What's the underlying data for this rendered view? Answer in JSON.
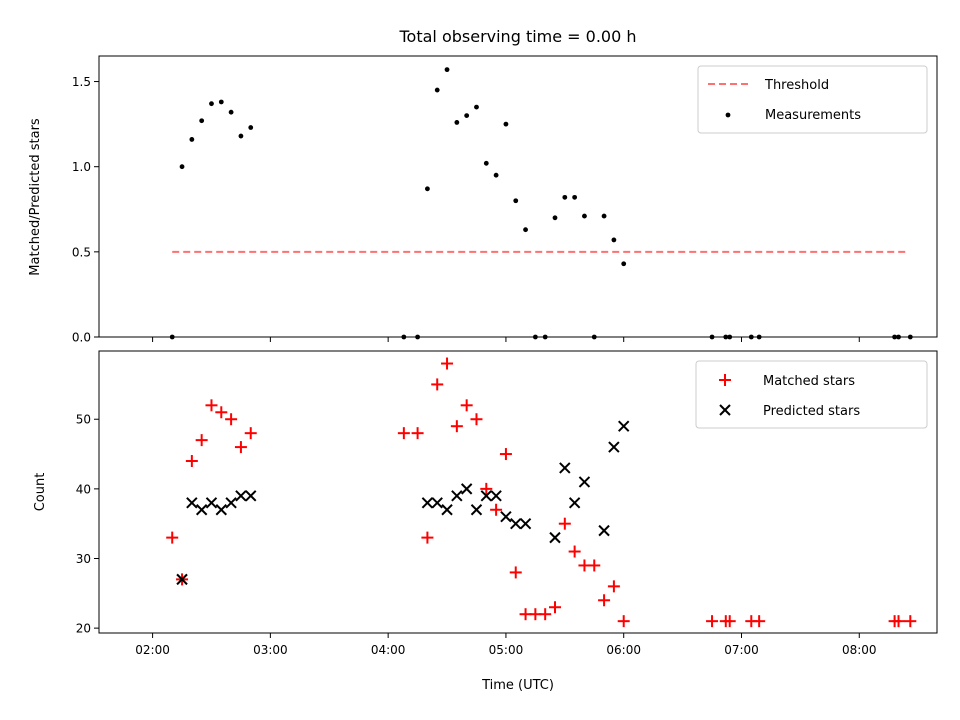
{
  "chart_data": [
    {
      "type": "scatter",
      "title": "Total observing time = 0.00 h",
      "xlabel": "",
      "ylabel": "Matched/Predicted stars",
      "ylim": [
        0,
        1.65
      ],
      "yticks": [
        "0.0",
        "0.5",
        "1.0",
        "1.5"
      ],
      "legend_position": "top-right",
      "threshold": {
        "name": "Threshold",
        "y": 0.5,
        "x_start": "02:10",
        "x_end": "08:25",
        "color": "#ff7070",
        "style": "dashed"
      },
      "series": [
        {
          "name": "Measurements",
          "color": "#000000",
          "marker": "dot",
          "points": [
            {
              "x": "02:10",
              "y": 0.0
            },
            {
              "x": "02:15",
              "y": 1.0
            },
            {
              "x": "02:20",
              "y": 1.16
            },
            {
              "x": "02:25",
              "y": 1.27
            },
            {
              "x": "02:30",
              "y": 1.37
            },
            {
              "x": "02:35",
              "y": 1.38
            },
            {
              "x": "02:40",
              "y": 1.32
            },
            {
              "x": "02:45",
              "y": 1.18
            },
            {
              "x": "02:50",
              "y": 1.23
            },
            {
              "x": "04:08",
              "y": 0.0
            },
            {
              "x": "04:15",
              "y": 0.0
            },
            {
              "x": "04:20",
              "y": 0.87
            },
            {
              "x": "04:25",
              "y": 1.45
            },
            {
              "x": "04:30",
              "y": 1.57
            },
            {
              "x": "04:35",
              "y": 1.26
            },
            {
              "x": "04:40",
              "y": 1.3
            },
            {
              "x": "04:45",
              "y": 1.35
            },
            {
              "x": "04:50",
              "y": 1.02
            },
            {
              "x": "04:55",
              "y": 0.95
            },
            {
              "x": "05:00",
              "y": 1.25
            },
            {
              "x": "05:05",
              "y": 0.8
            },
            {
              "x": "05:10",
              "y": 0.63
            },
            {
              "x": "05:15",
              "y": 0.0
            },
            {
              "x": "05:20",
              "y": 0.0
            },
            {
              "x": "05:25",
              "y": 0.7
            },
            {
              "x": "05:30",
              "y": 0.82
            },
            {
              "x": "05:35",
              "y": 0.82
            },
            {
              "x": "05:40",
              "y": 0.71
            },
            {
              "x": "05:45",
              "y": 0.0
            },
            {
              "x": "05:50",
              "y": 0.71
            },
            {
              "x": "05:55",
              "y": 0.57
            },
            {
              "x": "06:00",
              "y": 0.43
            },
            {
              "x": "06:45",
              "y": 0.0
            },
            {
              "x": "06:52",
              "y": 0.0
            },
            {
              "x": "06:54",
              "y": 0.0
            },
            {
              "x": "07:05",
              "y": 0.0
            },
            {
              "x": "07:09",
              "y": 0.0
            },
            {
              "x": "08:18",
              "y": 0.0
            },
            {
              "x": "08:20",
              "y": 0.0
            },
            {
              "x": "08:26",
              "y": 0.0
            }
          ]
        }
      ]
    },
    {
      "type": "scatter",
      "title": "",
      "xlabel": "Time (UTC)",
      "ylabel": "Count",
      "ylim": [
        19.3,
        59.8
      ],
      "yticks": [
        "20",
        "30",
        "40",
        "50"
      ],
      "xticks": [
        "02:00",
        "03:00",
        "04:00",
        "05:00",
        "06:00",
        "07:00",
        "08:00"
      ],
      "legend_position": "top-right",
      "series": [
        {
          "name": "Matched stars",
          "color": "#ff0000",
          "marker": "plus",
          "points": [
            {
              "x": "02:10",
              "y": 33
            },
            {
              "x": "02:15",
              "y": 27
            },
            {
              "x": "02:20",
              "y": 44
            },
            {
              "x": "02:25",
              "y": 47
            },
            {
              "x": "02:30",
              "y": 52
            },
            {
              "x": "02:35",
              "y": 51
            },
            {
              "x": "02:40",
              "y": 50
            },
            {
              "x": "02:45",
              "y": 46
            },
            {
              "x": "02:50",
              "y": 48
            },
            {
              "x": "04:08",
              "y": 48
            },
            {
              "x": "04:15",
              "y": 48
            },
            {
              "x": "04:20",
              "y": 33
            },
            {
              "x": "04:25",
              "y": 55
            },
            {
              "x": "04:30",
              "y": 58
            },
            {
              "x": "04:35",
              "y": 49
            },
            {
              "x": "04:40",
              "y": 52
            },
            {
              "x": "04:45",
              "y": 50
            },
            {
              "x": "04:50",
              "y": 40
            },
            {
              "x": "04:55",
              "y": 37
            },
            {
              "x": "05:00",
              "y": 45
            },
            {
              "x": "05:05",
              "y": 28
            },
            {
              "x": "05:10",
              "y": 22
            },
            {
              "x": "05:15",
              "y": 22
            },
            {
              "x": "05:20",
              "y": 22
            },
            {
              "x": "05:25",
              "y": 23
            },
            {
              "x": "05:30",
              "y": 35
            },
            {
              "x": "05:35",
              "y": 31
            },
            {
              "x": "05:40",
              "y": 29
            },
            {
              "x": "05:45",
              "y": 29
            },
            {
              "x": "05:50",
              "y": 24
            },
            {
              "x": "05:55",
              "y": 26
            },
            {
              "x": "06:00",
              "y": 21
            },
            {
              "x": "06:45",
              "y": 21
            },
            {
              "x": "06:52",
              "y": 21
            },
            {
              "x": "06:54",
              "y": 21
            },
            {
              "x": "07:05",
              "y": 21
            },
            {
              "x": "07:09",
              "y": 21
            },
            {
              "x": "08:18",
              "y": 21
            },
            {
              "x": "08:20",
              "y": 21
            },
            {
              "x": "08:26",
              "y": 21
            }
          ]
        },
        {
          "name": "Predicted stars",
          "color": "#000000",
          "marker": "x",
          "points": [
            {
              "x": "02:15",
              "y": 27
            },
            {
              "x": "02:20",
              "y": 38
            },
            {
              "x": "02:25",
              "y": 37
            },
            {
              "x": "02:30",
              "y": 38
            },
            {
              "x": "02:35",
              "y": 37
            },
            {
              "x": "02:40",
              "y": 38
            },
            {
              "x": "02:45",
              "y": 39
            },
            {
              "x": "02:50",
              "y": 39
            },
            {
              "x": "04:20",
              "y": 38
            },
            {
              "x": "04:25",
              "y": 38
            },
            {
              "x": "04:30",
              "y": 37
            },
            {
              "x": "04:35",
              "y": 39
            },
            {
              "x": "04:40",
              "y": 40
            },
            {
              "x": "04:45",
              "y": 37
            },
            {
              "x": "04:50",
              "y": 39
            },
            {
              "x": "04:55",
              "y": 39
            },
            {
              "x": "05:00",
              "y": 36
            },
            {
              "x": "05:05",
              "y": 35
            },
            {
              "x": "05:10",
              "y": 35
            },
            {
              "x": "05:25",
              "y": 33
            },
            {
              "x": "05:30",
              "y": 43
            },
            {
              "x": "05:35",
              "y": 38
            },
            {
              "x": "05:40",
              "y": 41
            },
            {
              "x": "05:50",
              "y": 34
            },
            {
              "x": "05:55",
              "y": 46
            },
            {
              "x": "06:00",
              "y": 49
            }
          ]
        }
      ]
    }
  ]
}
